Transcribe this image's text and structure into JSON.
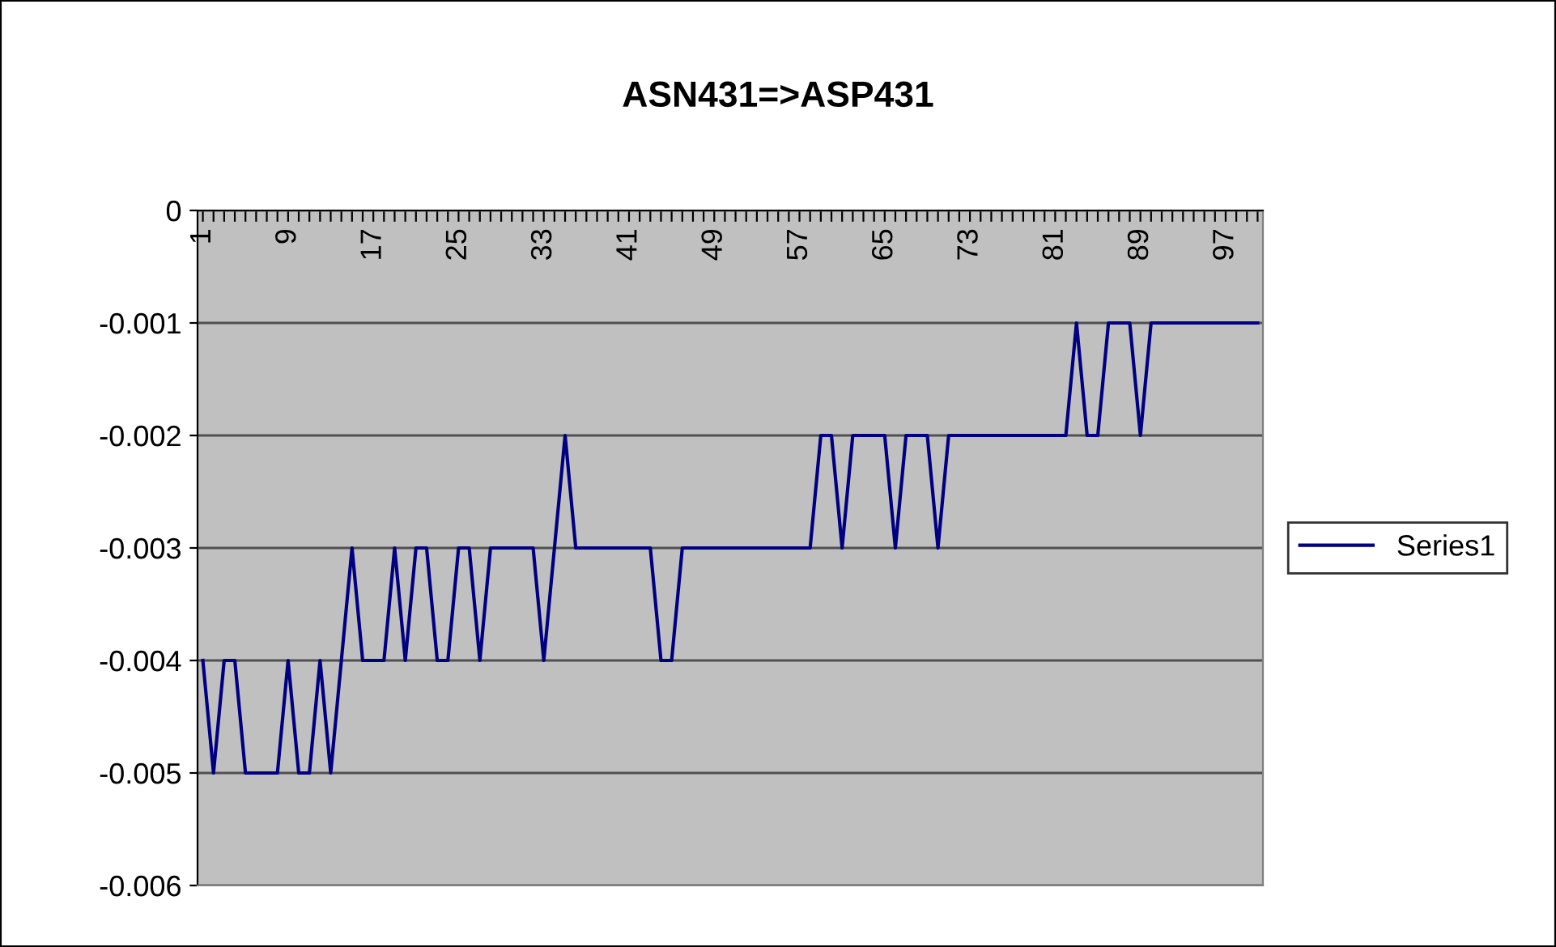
{
  "chart_data": {
    "type": "line",
    "title": "ASN431=>ASP431",
    "categories": [
      "1",
      null,
      null,
      null,
      null,
      null,
      null,
      null,
      "9",
      null,
      null,
      null,
      null,
      null,
      null,
      null,
      "17",
      null,
      null,
      null,
      null,
      null,
      null,
      null,
      "25",
      null,
      null,
      null,
      null,
      null,
      null,
      null,
      "33",
      null,
      null,
      null,
      null,
      null,
      null,
      null,
      "41",
      null,
      null,
      null,
      null,
      null,
      null,
      null,
      "49",
      null,
      null,
      null,
      null,
      null,
      null,
      null,
      "57",
      null,
      null,
      null,
      null,
      null,
      null,
      null,
      "65",
      null,
      null,
      null,
      null,
      null,
      null,
      null,
      "73",
      null,
      null,
      null,
      null,
      null,
      null,
      null,
      "81",
      null,
      null,
      null,
      null,
      null,
      null,
      null,
      "89",
      null,
      null,
      null,
      null,
      null,
      null,
      null,
      "97",
      null,
      null,
      null
    ],
    "series": [
      {
        "name": "Series1",
        "color": "#000080",
        "values": [
          -0.004,
          -0.005,
          -0.004,
          -0.004,
          -0.005,
          -0.005,
          -0.005,
          -0.005,
          -0.004,
          -0.005,
          -0.005,
          -0.004,
          -0.005,
          -0.004,
          -0.003,
          -0.004,
          -0.004,
          -0.004,
          -0.003,
          -0.004,
          -0.003,
          -0.003,
          -0.004,
          -0.004,
          -0.003,
          -0.003,
          -0.004,
          -0.003,
          -0.003,
          -0.003,
          -0.003,
          -0.003,
          -0.004,
          -0.003,
          -0.002,
          -0.003,
          -0.003,
          -0.003,
          -0.003,
          -0.003,
          -0.003,
          -0.003,
          -0.003,
          -0.004,
          -0.004,
          -0.003,
          -0.003,
          -0.003,
          -0.003,
          -0.003,
          -0.003,
          -0.003,
          -0.003,
          -0.003,
          -0.003,
          -0.003,
          -0.003,
          -0.003,
          -0.002,
          -0.002,
          -0.003,
          -0.002,
          -0.002,
          -0.002,
          -0.002,
          -0.003,
          -0.002,
          -0.002,
          -0.002,
          -0.003,
          -0.002,
          -0.002,
          -0.002,
          -0.002,
          -0.002,
          -0.002,
          -0.002,
          -0.002,
          -0.002,
          -0.002,
          -0.002,
          -0.002,
          -0.001,
          -0.002,
          -0.002,
          -0.001,
          -0.001,
          -0.001,
          -0.002,
          -0.001,
          -0.001,
          -0.001,
          -0.001,
          -0.001,
          -0.001,
          -0.001,
          -0.001,
          -0.001,
          -0.001,
          -0.001
        ]
      }
    ],
    "ylim": [
      -0.006,
      0
    ],
    "yticks": [
      -0.006,
      -0.005,
      -0.004,
      -0.003,
      -0.002,
      -0.001,
      0
    ],
    "grid": "y",
    "legend": "right"
  }
}
